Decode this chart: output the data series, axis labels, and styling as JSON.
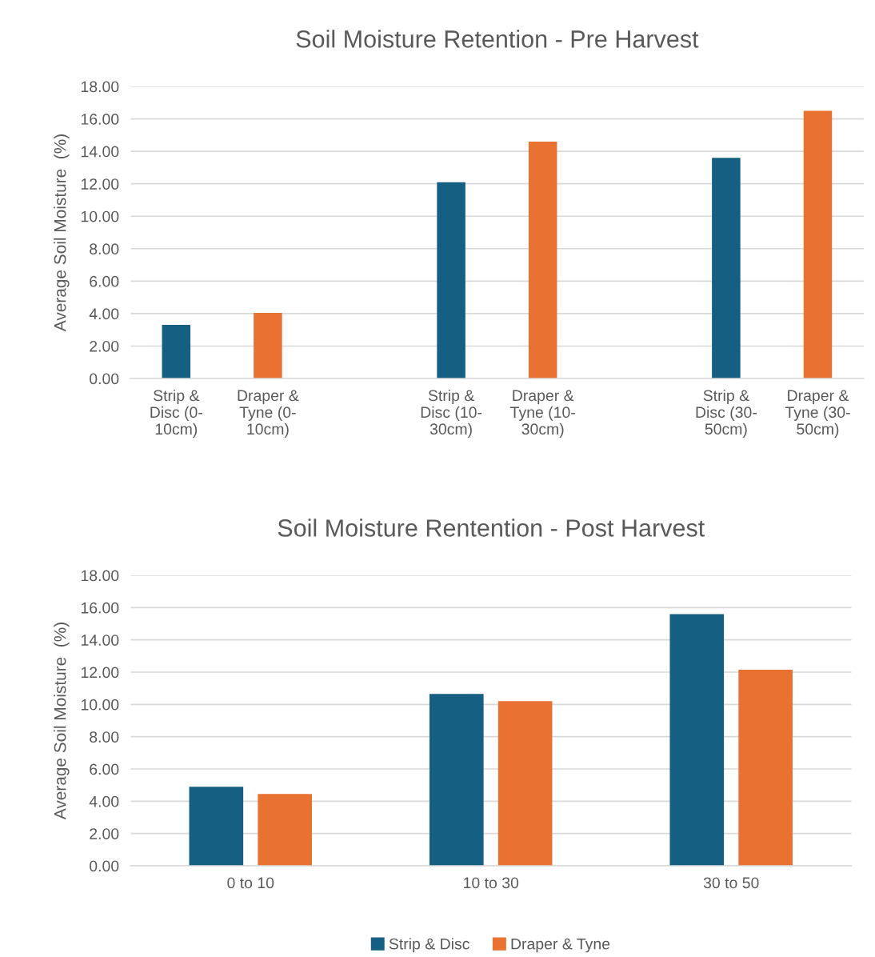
{
  "chart_data": [
    {
      "type": "bar",
      "title": "Soil Moisture Retention - Pre Harvest",
      "ylabel": "Average Soil Moisture  (%)",
      "categories": [
        "Strip &\nDisc (0-\n10cm)",
        "Draper &\nTyne (0-\n10cm)",
        null,
        "Strip &\nDisc (10-\n30cm)",
        "Draper &\nTyne (10-\n30cm)",
        null,
        "Strip &\nDisc (30-\n50cm)",
        "Draper &\nTyne (30-\n50cm)"
      ],
      "values": [
        3.3,
        4.05,
        null,
        12.1,
        14.6,
        null,
        13.6,
        16.5
      ],
      "colors": [
        "#156082",
        "#e97132",
        null,
        "#156082",
        "#e97132",
        null,
        "#156082",
        "#e97132"
      ],
      "ylim": [
        0,
        18
      ],
      "yticks": [
        {
          "value": 0,
          "label": "0.00"
        },
        {
          "value": 2,
          "label": "2.00"
        },
        {
          "value": 4,
          "label": "4.00"
        },
        {
          "value": 6,
          "label": "6.00"
        },
        {
          "value": 8,
          "label": "8.00"
        },
        {
          "value": 10,
          "label": "10.00"
        },
        {
          "value": 12,
          "label": "12.00"
        },
        {
          "value": 14,
          "label": "14.00"
        },
        {
          "value": 16,
          "label": "16.00"
        },
        {
          "value": 18,
          "label": "18.00"
        }
      ],
      "grid": "y",
      "legend": false
    },
    {
      "type": "bar",
      "title": "Soil Moisture Rentention - Post Harvest",
      "ylabel": "Average Soil Moisture  (%)",
      "categories": [
        "0 to 10",
        "10 to 30",
        "30 to 50"
      ],
      "series": [
        {
          "name": "Strip & Disc",
          "color": "#156082",
          "values": [
            4.9,
            10.65,
            15.6
          ]
        },
        {
          "name": "Draper & Tyne",
          "color": "#e97132",
          "values": [
            4.45,
            10.2,
            12.15
          ]
        }
      ],
      "ylim": [
        0,
        18
      ],
      "yticks": [
        {
          "value": 0,
          "label": "0.00"
        },
        {
          "value": 2,
          "label": "2.00"
        },
        {
          "value": 4,
          "label": "4.00"
        },
        {
          "value": 6,
          "label": "6.00"
        },
        {
          "value": 8,
          "label": "8.00"
        },
        {
          "value": 10,
          "label": "10.00"
        },
        {
          "value": 12,
          "label": "12.00"
        },
        {
          "value": 14,
          "label": "14.00"
        },
        {
          "value": 16,
          "label": "16.00"
        },
        {
          "value": 18,
          "label": "18.00"
        }
      ],
      "grid": "y",
      "legend": "bottom"
    }
  ]
}
